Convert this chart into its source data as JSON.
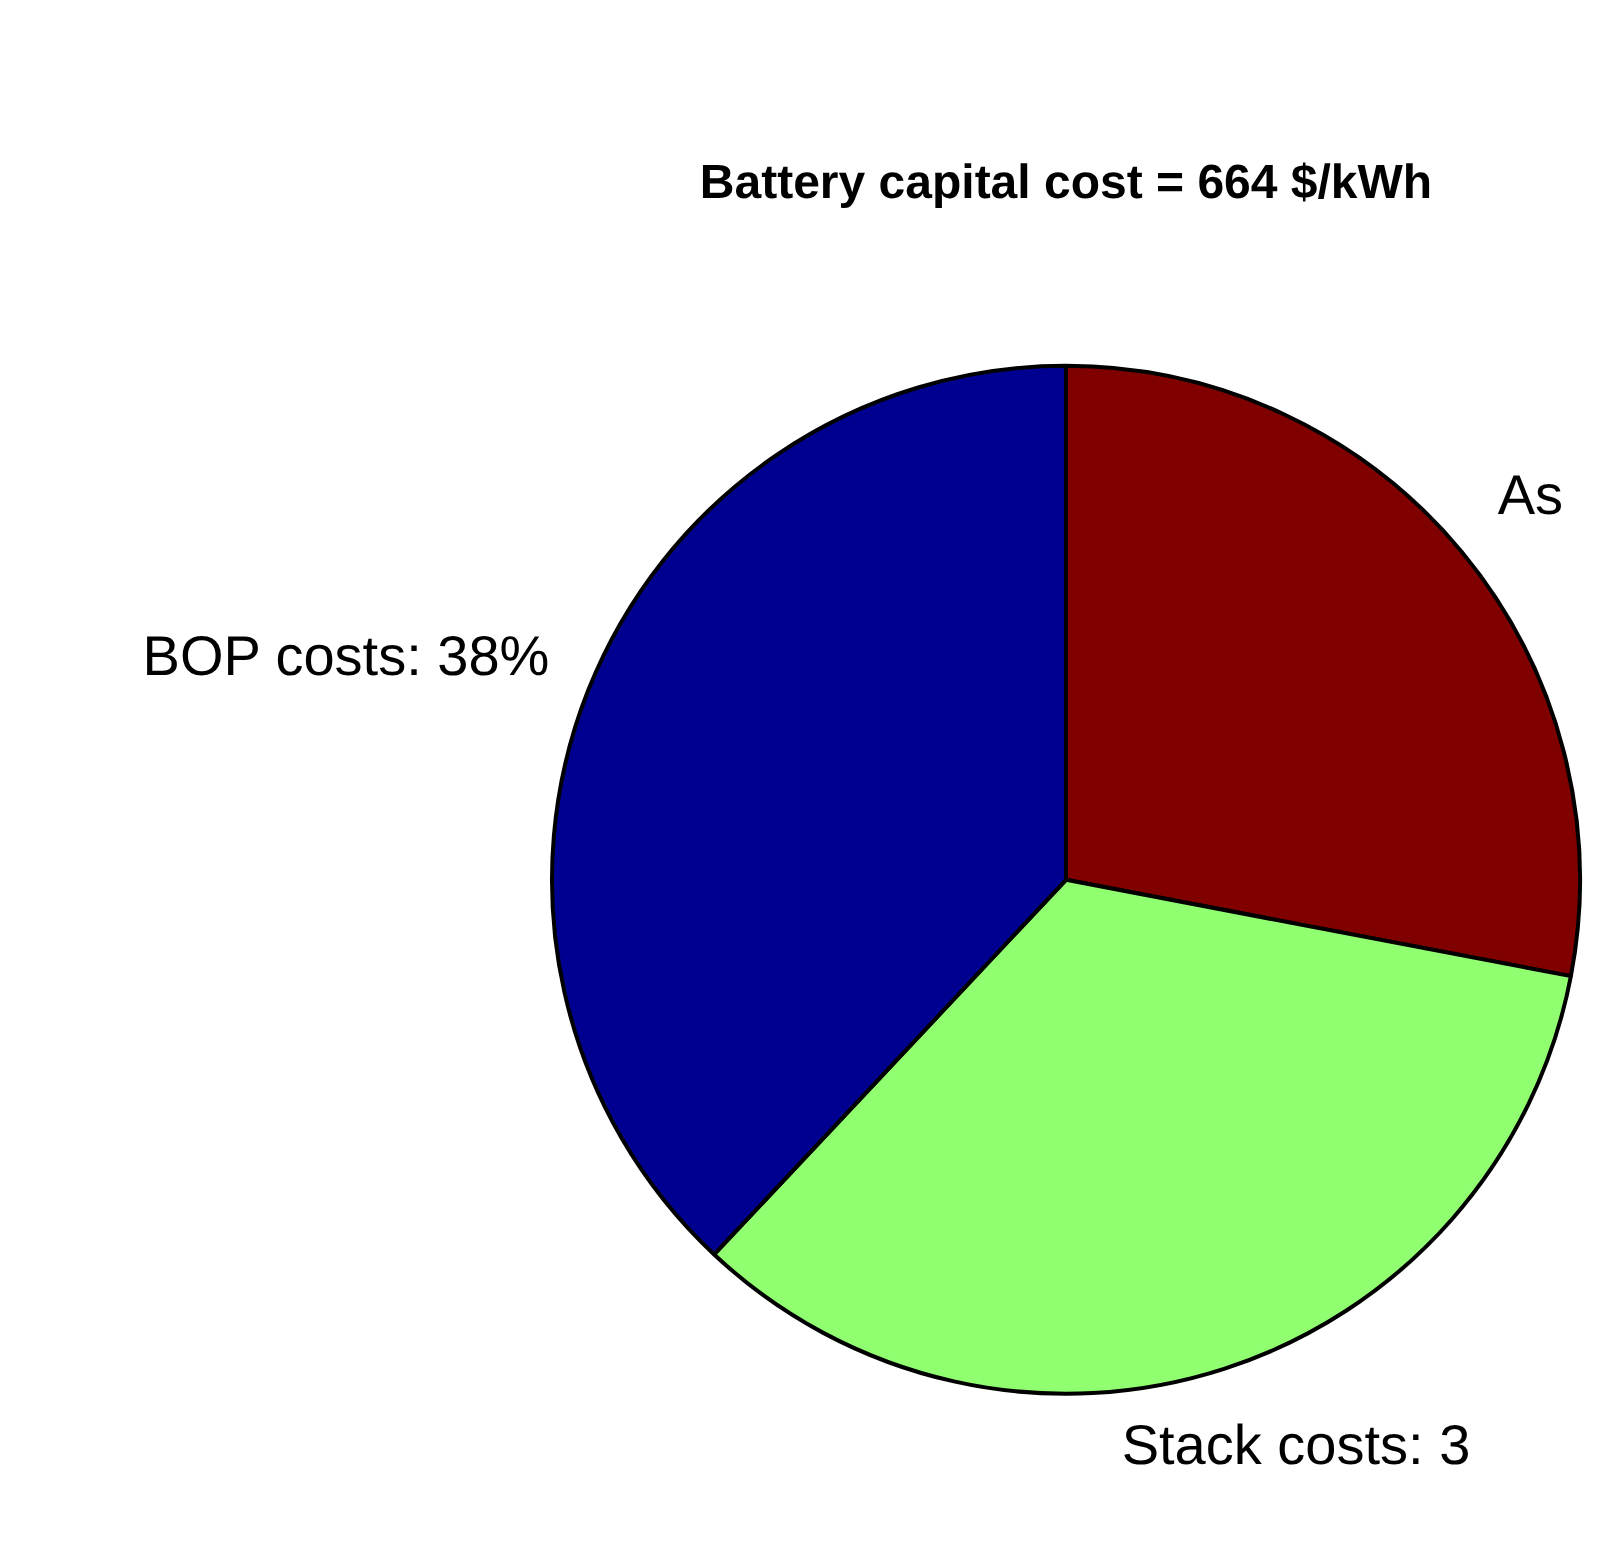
{
  "chart_data": {
    "type": "pie",
    "title": "Battery capital cost = 664 $/kWh",
    "categories": [
      "As",
      "Stack costs: 3",
      "BOP costs: 38%"
    ],
    "values": [
      28,
      34,
      38
    ],
    "colors": [
      "#800000",
      "#90ff70",
      "#000090"
    ],
    "legend": false
  }
}
